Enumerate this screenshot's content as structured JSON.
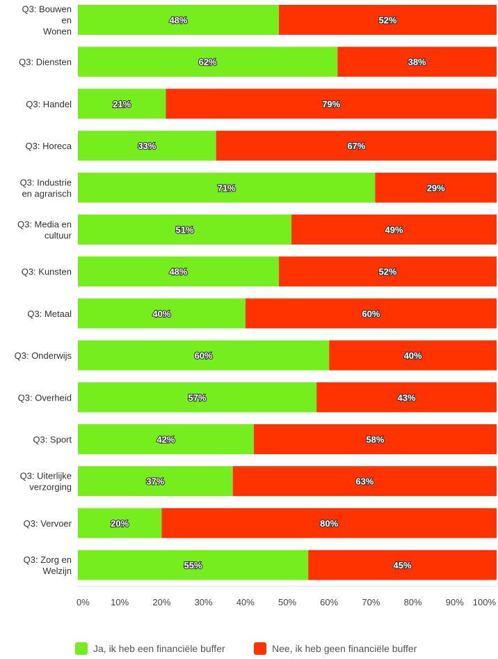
{
  "chart_data": {
    "type": "bar",
    "orientation": "horizontal",
    "stacked": true,
    "categories": [
      "Q3: Bouwen en Wonen",
      "Q3: Diensten",
      "Q3: Handel",
      "Q3: Horeca",
      "Q3: Industrie en agrarisch",
      "Q3: Media en cultuur",
      "Q3: Kunsten",
      "Q3: Metaal",
      "Q3: Onderwijs",
      "Q3: Overheid",
      "Q3: Sport",
      "Q3: Uiterlijke verzorging",
      "Q3: Vervoer",
      "Q3: Zorg en Welzijn"
    ],
    "category_lines": [
      [
        "Q3: Bouwen",
        "en",
        "Wonen"
      ],
      [
        "Q3: Diensten"
      ],
      [
        "Q3: Handel"
      ],
      [
        "Q3: Horeca"
      ],
      [
        "Q3: Industrie",
        "en agrarisch"
      ],
      [
        "Q3: Media en",
        "cultuur"
      ],
      [
        "Q3: Kunsten"
      ],
      [
        "Q3: Metaal"
      ],
      [
        "Q3: Onderwijs"
      ],
      [
        "Q3: Overheid"
      ],
      [
        "Q3: Sport"
      ],
      [
        "Q3: Uiterlijke",
        "verzorging"
      ],
      [
        "Q3: Vervoer"
      ],
      [
        "Q3: Zorg en",
        "Welzijn"
      ]
    ],
    "series": [
      {
        "name": "Ja, ik heb een financiële buffer",
        "color": "#76ee1e",
        "values": [
          48,
          62,
          21,
          33,
          71,
          51,
          48,
          40,
          60,
          57,
          42,
          37,
          20,
          55
        ],
        "labels": [
          "48%",
          "62%",
          "21%",
          "33%",
          "71%",
          "51%",
          "48%",
          "40%",
          "60%",
          "57%",
          "42%",
          "37%",
          "20%",
          "55%"
        ]
      },
      {
        "name": "Nee, ik heb geen financiële buffer",
        "color": "#ff3300",
        "values": [
          52,
          38,
          79,
          67,
          29,
          49,
          52,
          60,
          40,
          43,
          58,
          63,
          80,
          45
        ],
        "labels": [
          "52%",
          "38%",
          "79%",
          "67%",
          "29%",
          "49%",
          "52%",
          "60%",
          "40%",
          "43%",
          "58%",
          "63%",
          "80%",
          "45%"
        ]
      }
    ],
    "xticks": [
      "0%",
      "10%",
      "20%",
      "30%",
      "40%",
      "50%",
      "60%",
      "70%",
      "80%",
      "90%",
      "100%"
    ],
    "xlim": [
      0,
      100
    ],
    "grid": false,
    "legend_position": "bottom"
  }
}
